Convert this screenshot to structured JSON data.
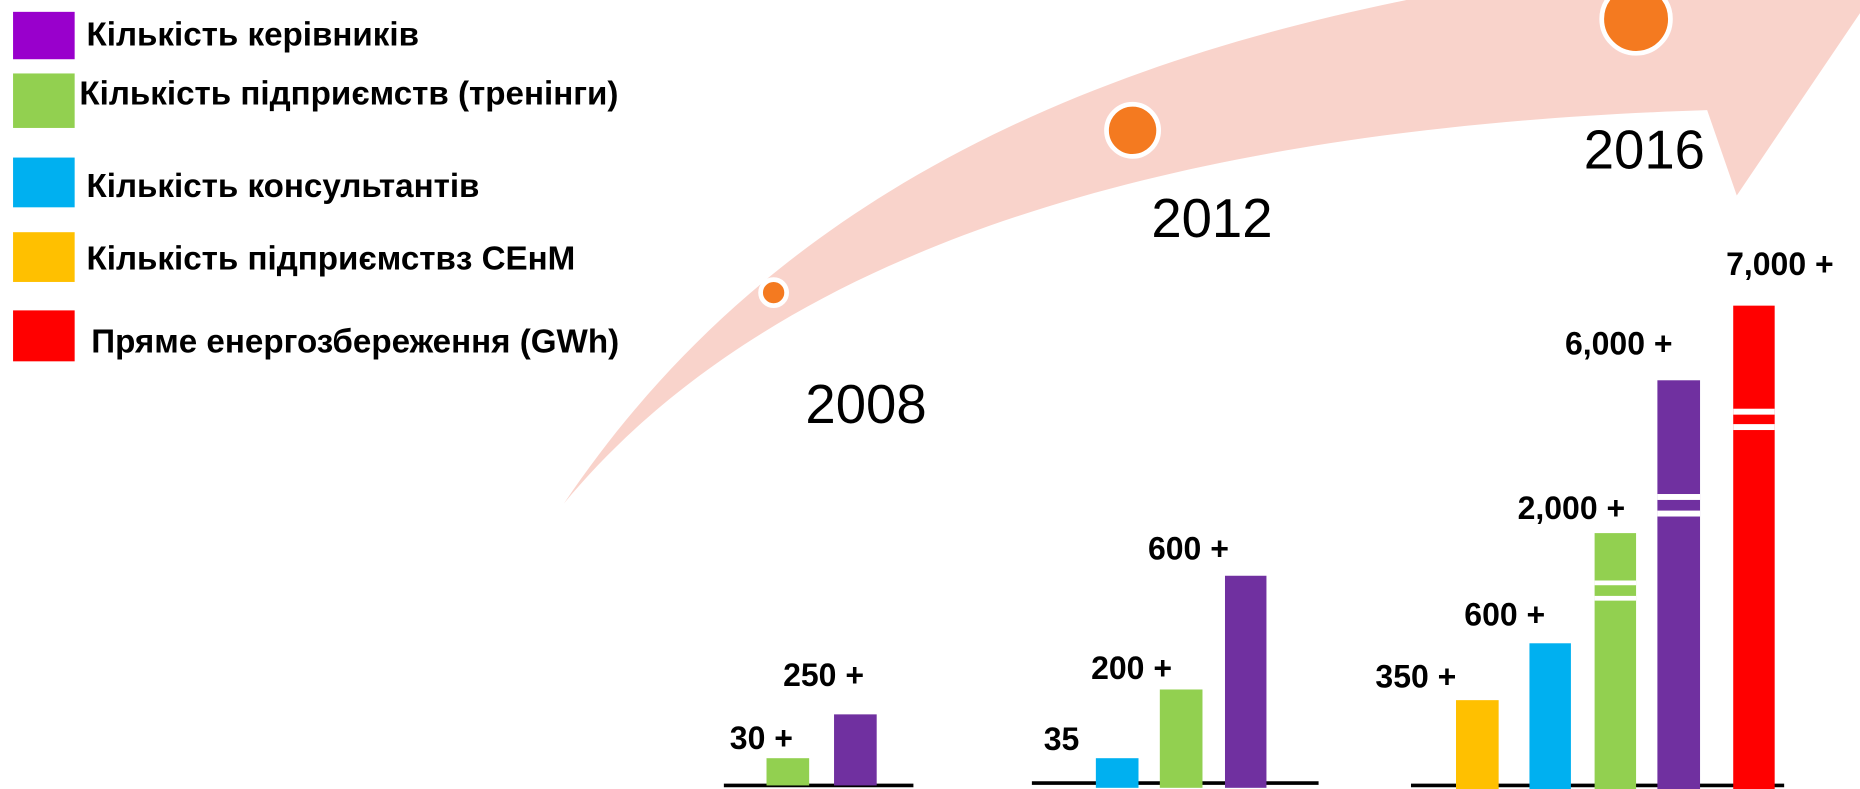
{
  "legend": [
    {
      "label": "Кількість керівників"
    },
    {
      "label": "Кількість підприємств (тренінги)"
    },
    {
      "label": "Кількість консультантів"
    },
    {
      "label": "Кількість підприємствз СЕнМ"
    },
    {
      "label": "Пряме енергозбереження (GWh)"
    }
  ],
  "groups": [
    {
      "year": "2008",
      "bars": [
        {
          "label": "30 +"
        },
        {
          "label": "250 +"
        }
      ]
    },
    {
      "year": "2012",
      "bars": [
        {
          "label": "35"
        },
        {
          "label": "200 +"
        },
        {
          "label": "600 +"
        }
      ]
    },
    {
      "year": "2016",
      "bars": [
        {
          "label": "350 +"
        },
        {
          "label": "600 +"
        },
        {
          "label": "2,000 +"
        },
        {
          "label": "6,000 +"
        },
        {
          "label": "7,000 +"
        }
      ]
    }
  ]
}
